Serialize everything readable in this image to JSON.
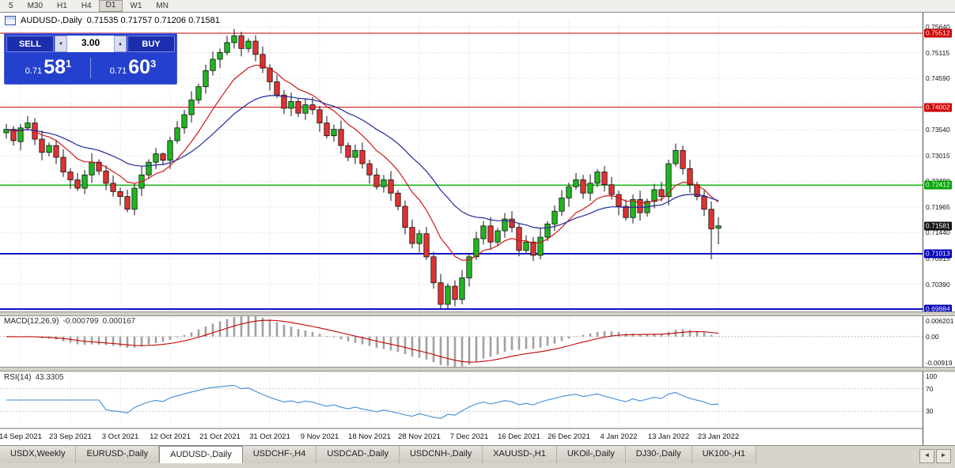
{
  "toolbar": {
    "periods": [
      {
        "label": "5",
        "active": false
      },
      {
        "label": "M30",
        "active": false
      },
      {
        "label": "H1",
        "active": false
      },
      {
        "label": "H4",
        "active": false
      },
      {
        "label": "D1",
        "active": true
      },
      {
        "label": "W1",
        "active": false
      },
      {
        "label": "MN",
        "active": false
      }
    ]
  },
  "chart": {
    "title": "AUDUSD-,Daily",
    "ohlc": "0.71535 0.71757 0.71206 0.71581"
  },
  "trade_panel": {
    "sell_label": "SELL",
    "buy_label": "BUY",
    "volume": "3.00",
    "volume_down": "▼",
    "volume_up": "▲",
    "sell_price_prefix": "0.71",
    "sell_price_big": "58",
    "sell_price_sup": "1",
    "buy_price_prefix": "0.71",
    "buy_price_big": "60",
    "buy_price_sup": "3",
    "bg_color": "#2440cf"
  },
  "price_axis": {
    "ticks": [
      0.7564,
      0.75115,
      0.7459,
      0.7354,
      0.73015,
      0.7249,
      0.71965,
      0.7144,
      0.70915,
      0.7039
    ],
    "grid_prices": [
      0.7564,
      0.75115,
      0.7459,
      0.74065,
      0.7354,
      0.73015,
      0.7249,
      0.71965,
      0.7144,
      0.70915,
      0.7039,
      0.69865
    ],
    "badges": [
      {
        "value": 0.75512,
        "color": "#cc0000"
      },
      {
        "value": 0.74002,
        "color": "#cc0000"
      },
      {
        "value": 0.72412,
        "color": "#00a400"
      },
      {
        "value": 0.71581,
        "color": "#151515"
      },
      {
        "value": 0.71013,
        "color": "#0000bb"
      },
      {
        "value": 0.69884,
        "color": "#0000bb"
      }
    ]
  },
  "hlines": [
    {
      "price": 0.75512,
      "color": "#cc0000",
      "width": 1
    },
    {
      "price": 0.74002,
      "color": "#cc0000",
      "width": 1
    },
    {
      "price": 0.72412,
      "color": "#00b200",
      "width": 1.4
    },
    {
      "price": 0.71013,
      "color": "#0000cc",
      "width": 1.8
    },
    {
      "price": 0.69884,
      "color": "#0000cc",
      "width": 1.8
    }
  ],
  "indicators": {
    "macd": {
      "name": "MACD(12,26,9)",
      "value_main": "-0.000799",
      "value_signal": "0.000167",
      "fast": 12,
      "slow": 26,
      "smoothing": 9,
      "vmax": 0.006201,
      "vmin": -0.00919,
      "axis": [
        {
          "label": "0.006201",
          "v": 0.006201
        },
        {
          "label": "0.00",
          "v": 0
        },
        {
          "label": "-0.00919",
          "v": -0.00919
        }
      ],
      "histogram_color": "#a0a0a0",
      "signal_color": "#c40000"
    },
    "rsi": {
      "name": "RSI(14)",
      "value": "43.3305",
      "period": 14,
      "axis": [
        {
          "label": "100",
          "v": 100
        },
        {
          "label": "70",
          "v": 70
        },
        {
          "label": "30",
          "v": 30
        }
      ],
      "levels": [
        70,
        30
      ],
      "color": "#3d8ed8"
    }
  },
  "dates": [
    "14 Sep 2021",
    "23 Sep 2021",
    "3 Oct 2021",
    "12 Oct 2021",
    "21 Oct 2021",
    "31 Oct 2021",
    "9 Nov 2021",
    "18 Nov 2021",
    "28 Nov 2021",
    "7 Dec 2021",
    "16 Dec 2021",
    "26 Dec 2021",
    "4 Jan 2022",
    "13 Jan 2022",
    "23 Jan 2022"
  ],
  "tabs": [
    {
      "label": "USDX,Weekly",
      "active": false
    },
    {
      "label": "EURUSD-,Daily",
      "active": false
    },
    {
      "label": "AUDUSD-,Daily",
      "active": true
    },
    {
      "label": "USDCHF-,H4",
      "active": false
    },
    {
      "label": "USDCAD-,Daily",
      "active": false
    },
    {
      "label": "USDCNH-,Daily",
      "active": false
    },
    {
      "label": "XAUUSD-,H1",
      "active": false
    },
    {
      "label": "UKOil-,Daily",
      "active": false
    },
    {
      "label": "DJ30-,Daily",
      "active": false
    },
    {
      "label": "UK100-,H1",
      "active": false
    }
  ],
  "scroll": {
    "left": "◄",
    "right": "►"
  },
  "chart_style": {
    "up_color": "#1fb71f",
    "down_color": "#e03232",
    "wick_color": "#111111",
    "ma_fast_color": "#d01818",
    "ma_slow_color": "#1f2a9e",
    "ma_fast_period": 10,
    "ma_slow_period": 24,
    "grid_color": "#d8d8d8"
  },
  "chart_data": {
    "type": "candlestick",
    "symbol": "AUDUSD-",
    "timeframe": "Daily",
    "last_candle": {
      "open": 0.71535,
      "high": 0.71757,
      "low": 0.71206,
      "close": 0.71581
    },
    "date_tick_start": 2,
    "date_tick_step": 7,
    "candles": [
      [
        0.7348,
        0.7366,
        0.7336,
        0.7355
      ],
      [
        0.7355,
        0.7362,
        0.7322,
        0.7332
      ],
      [
        0.733,
        0.7366,
        0.7312,
        0.7358
      ],
      [
        0.7358,
        0.7382,
        0.7352,
        0.7368
      ],
      [
        0.7368,
        0.7378,
        0.7323,
        0.7335
      ],
      [
        0.7335,
        0.7353,
        0.7292,
        0.7308
      ],
      [
        0.7308,
        0.7328,
        0.73,
        0.7322
      ],
      [
        0.7322,
        0.7334,
        0.7284,
        0.7298
      ],
      [
        0.7298,
        0.7314,
        0.7258,
        0.7268
      ],
      [
        0.7268,
        0.7276,
        0.7234,
        0.7252
      ],
      [
        0.7252,
        0.7266,
        0.7229,
        0.7235
      ],
      [
        0.7235,
        0.7272,
        0.7223,
        0.7262
      ],
      [
        0.7262,
        0.7306,
        0.7246,
        0.7288
      ],
      [
        0.7288,
        0.7294,
        0.7262,
        0.727
      ],
      [
        0.727,
        0.7282,
        0.7231,
        0.7245
      ],
      [
        0.7245,
        0.7261,
        0.7218,
        0.7228
      ],
      [
        0.7228,
        0.7236,
        0.72,
        0.7218
      ],
      [
        0.7218,
        0.7232,
        0.7186,
        0.7192
      ],
      [
        0.7192,
        0.7245,
        0.718,
        0.7235
      ],
      [
        0.7235,
        0.728,
        0.7219,
        0.7262
      ],
      [
        0.7262,
        0.7294,
        0.7254,
        0.7288
      ],
      [
        0.7288,
        0.7317,
        0.7274,
        0.7305
      ],
      [
        0.7305,
        0.7308,
        0.7282,
        0.7292
      ],
      [
        0.7292,
        0.734,
        0.7274,
        0.7332
      ],
      [
        0.7332,
        0.7372,
        0.7326,
        0.7358
      ],
      [
        0.7358,
        0.7395,
        0.7346,
        0.7385
      ],
      [
        0.7385,
        0.7433,
        0.7369,
        0.7415
      ],
      [
        0.7415,
        0.7448,
        0.7407,
        0.7442
      ],
      [
        0.7442,
        0.7487,
        0.7428,
        0.7475
      ],
      [
        0.7475,
        0.7514,
        0.7465,
        0.7498
      ],
      [
        0.7498,
        0.752,
        0.748,
        0.7512
      ],
      [
        0.7512,
        0.7546,
        0.7506,
        0.7532
      ],
      [
        0.7532,
        0.756,
        0.752,
        0.7546
      ],
      [
        0.7546,
        0.7554,
        0.7504,
        0.752
      ],
      [
        0.752,
        0.7541,
        0.7512,
        0.7535
      ],
      [
        0.7535,
        0.7547,
        0.7494,
        0.7508
      ],
      [
        0.7508,
        0.7524,
        0.747,
        0.748
      ],
      [
        0.748,
        0.7488,
        0.7434,
        0.7452
      ],
      [
        0.7452,
        0.7466,
        0.7419,
        0.7425
      ],
      [
        0.7425,
        0.7435,
        0.7386,
        0.7398
      ],
      [
        0.7398,
        0.743,
        0.7382,
        0.7412
      ],
      [
        0.7412,
        0.7418,
        0.738,
        0.7388
      ],
      [
        0.7388,
        0.7417,
        0.7374,
        0.7405
      ],
      [
        0.7405,
        0.7421,
        0.7385,
        0.7395
      ],
      [
        0.7395,
        0.7403,
        0.735,
        0.7368
      ],
      [
        0.7368,
        0.7382,
        0.7336,
        0.7342
      ],
      [
        0.7342,
        0.7365,
        0.733,
        0.7355
      ],
      [
        0.7355,
        0.7373,
        0.7306,
        0.7322
      ],
      [
        0.7322,
        0.7328,
        0.729,
        0.7298
      ],
      [
        0.7298,
        0.7324,
        0.7284,
        0.7312
      ],
      [
        0.7312,
        0.7328,
        0.7275,
        0.7285
      ],
      [
        0.7285,
        0.7293,
        0.7244,
        0.7262
      ],
      [
        0.7262,
        0.7276,
        0.7232,
        0.7238
      ],
      [
        0.7238,
        0.7262,
        0.7226,
        0.7252
      ],
      [
        0.7252,
        0.727,
        0.7209,
        0.7225
      ],
      [
        0.7225,
        0.7231,
        0.719,
        0.7198
      ],
      [
        0.7198,
        0.721,
        0.7141,
        0.7155
      ],
      [
        0.7155,
        0.7171,
        0.7112,
        0.7122
      ],
      [
        0.7122,
        0.715,
        0.7104,
        0.7142
      ],
      [
        0.7142,
        0.7156,
        0.7089,
        0.7095
      ],
      [
        0.7095,
        0.7105,
        0.703,
        0.7042
      ],
      [
        0.7042,
        0.706,
        0.6988,
        0.6998
      ],
      [
        0.6998,
        0.7041,
        0.699,
        0.7035
      ],
      [
        0.7035,
        0.7047,
        0.6994,
        0.7008
      ],
      [
        0.7008,
        0.7068,
        0.6998,
        0.7052
      ],
      [
        0.7052,
        0.7103,
        0.7034,
        0.7095
      ],
      [
        0.7095,
        0.7146,
        0.7089,
        0.7132
      ],
      [
        0.7132,
        0.7168,
        0.712,
        0.7158
      ],
      [
        0.7158,
        0.7176,
        0.7109,
        0.7125
      ],
      [
        0.7125,
        0.7154,
        0.7117,
        0.7148
      ],
      [
        0.7148,
        0.7184,
        0.7134,
        0.7172
      ],
      [
        0.7172,
        0.7188,
        0.7145,
        0.7155
      ],
      [
        0.7155,
        0.7163,
        0.7096,
        0.7108
      ],
      [
        0.7108,
        0.7139,
        0.7102,
        0.7125
      ],
      [
        0.7125,
        0.7135,
        0.7086,
        0.7098
      ],
      [
        0.7098,
        0.7153,
        0.709,
        0.7135
      ],
      [
        0.7135,
        0.7168,
        0.7127,
        0.7162
      ],
      [
        0.7162,
        0.72,
        0.7148,
        0.7188
      ],
      [
        0.7188,
        0.7231,
        0.7178,
        0.7215
      ],
      [
        0.7215,
        0.7246,
        0.7197,
        0.7238
      ],
      [
        0.7238,
        0.7266,
        0.7232,
        0.7252
      ],
      [
        0.7252,
        0.7262,
        0.7213,
        0.7225
      ],
      [
        0.7225,
        0.7263,
        0.7209,
        0.7245
      ],
      [
        0.7245,
        0.7274,
        0.7237,
        0.7268
      ],
      [
        0.7268,
        0.728,
        0.7228,
        0.7242
      ],
      [
        0.7242,
        0.7258,
        0.7212,
        0.7222
      ],
      [
        0.7222,
        0.723,
        0.718,
        0.7198
      ],
      [
        0.7198,
        0.7212,
        0.7169,
        0.7175
      ],
      [
        0.7175,
        0.7222,
        0.7163,
        0.7212
      ],
      [
        0.7212,
        0.723,
        0.7169,
        0.7185
      ],
      [
        0.7185,
        0.7214,
        0.7177,
        0.7208
      ],
      [
        0.7208,
        0.7244,
        0.7194,
        0.7232
      ],
      [
        0.7232,
        0.7248,
        0.7208,
        0.7218
      ],
      [
        0.7218,
        0.7293,
        0.72,
        0.7285
      ],
      [
        0.7285,
        0.7326,
        0.7279,
        0.7312
      ],
      [
        0.7312,
        0.7322,
        0.7263,
        0.7275
      ],
      [
        0.7275,
        0.7293,
        0.7226,
        0.7242
      ],
      [
        0.7242,
        0.7248,
        0.721,
        0.7218
      ],
      [
        0.7218,
        0.723,
        0.7178,
        0.7192
      ],
      [
        0.7192,
        0.7208,
        0.709,
        0.7152
      ],
      [
        0.71535,
        0.71757,
        0.71206,
        0.71581
      ]
    ]
  }
}
